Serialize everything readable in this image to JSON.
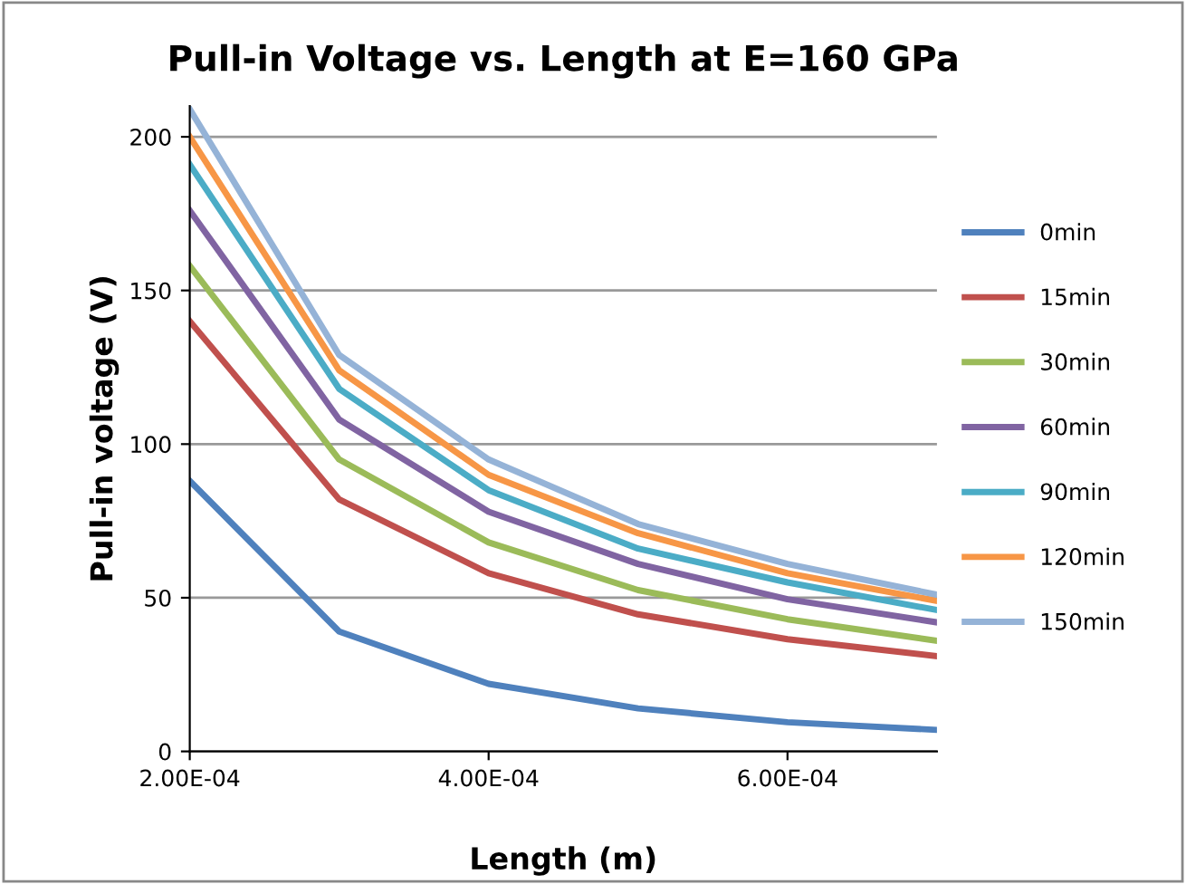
{
  "chart_data": {
    "type": "line",
    "title": "Pull-in Voltage vs. Length at E=160 GPa",
    "xlabel": "Length (m)",
    "ylabel": "Pull-in voltage (V)",
    "x": [
      0.0002,
      0.0003,
      0.0004,
      0.0005,
      0.0006,
      0.0007
    ],
    "series": [
      {
        "name": "0min",
        "color": "#4f81bd",
        "values": [
          88,
          39,
          22,
          14,
          9.5,
          7
        ]
      },
      {
        "name": "15min",
        "color": "#c0504d",
        "values": [
          140,
          82,
          58,
          44.6,
          36.5,
          31
        ]
      },
      {
        "name": "30min",
        "color": "#9bbb59",
        "values": [
          158,
          95,
          68,
          52.5,
          43,
          36
        ]
      },
      {
        "name": "60min",
        "color": "#8064a2",
        "values": [
          176,
          108,
          78,
          61,
          49.5,
          42
        ]
      },
      {
        "name": "90min",
        "color": "#4bacc6",
        "values": [
          191,
          118,
          85,
          66,
          55,
          46
        ]
      },
      {
        "name": "120min",
        "color": "#f79646",
        "values": [
          200,
          124,
          90,
          71,
          58,
          49
        ]
      },
      {
        "name": "150min",
        "color": "#95b3d7",
        "values": [
          209,
          129,
          95,
          74,
          61,
          51
        ]
      }
    ],
    "xlim": [
      0.0002,
      0.0007
    ],
    "xticks": [
      {
        "value": 0.0002,
        "label": "2.00E-04"
      },
      {
        "value": 0.0004,
        "label": "4.00E-04"
      },
      {
        "value": 0.0006,
        "label": "6.00E-04"
      }
    ],
    "ylim": [
      0,
      210
    ],
    "yticks": [
      0,
      50,
      100,
      150,
      200
    ],
    "grid": "y",
    "legend": "right",
    "marker": "none",
    "line_style": "solid"
  }
}
